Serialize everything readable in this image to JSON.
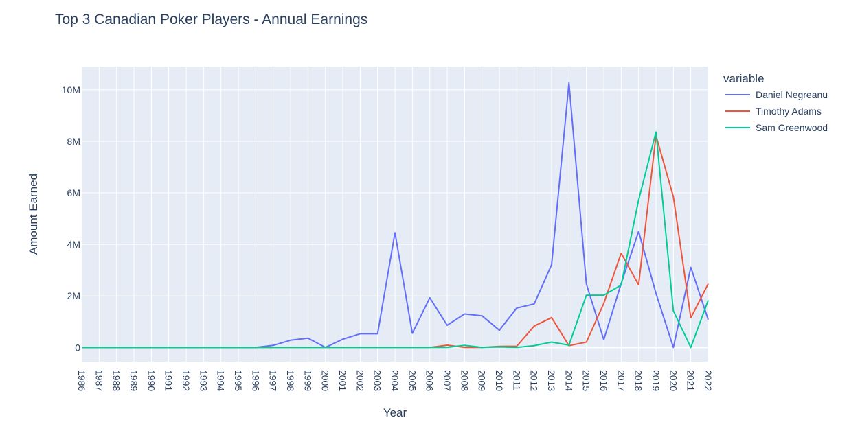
{
  "chart_data": {
    "type": "line",
    "title": "Top 3 Canadian Poker Players - Annual Earnings",
    "xlabel": "Year",
    "ylabel": "Amount Earned",
    "legend_title": "variable",
    "legend_position": "right",
    "grid": true,
    "xlim": [
      1986,
      2022
    ],
    "ylim": [
      -550000,
      10900000
    ],
    "y_ticks": [
      0,
      2000000,
      4000000,
      6000000,
      8000000,
      10000000
    ],
    "y_tick_labels": [
      "0",
      "2M",
      "4M",
      "6M",
      "8M",
      "10M"
    ],
    "x": [
      1986,
      1987,
      1988,
      1989,
      1990,
      1991,
      1992,
      1993,
      1994,
      1995,
      1996,
      1997,
      1998,
      1999,
      2000,
      2001,
      2002,
      2003,
      2004,
      2005,
      2006,
      2007,
      2008,
      2009,
      2010,
      2011,
      2012,
      2013,
      2014,
      2015,
      2016,
      2017,
      2018,
      2019,
      2020,
      2021,
      2022
    ],
    "x_tick_labels": [
      "1986",
      "1987",
      "1988",
      "1989",
      "1990",
      "1991",
      "1992",
      "1993",
      "1994",
      "1995",
      "1996",
      "1997",
      "1998",
      "1999",
      "2000",
      "2001",
      "2002",
      "2003",
      "2004",
      "2005",
      "2006",
      "2007",
      "2008",
      "2009",
      "2010",
      "2011",
      "2012",
      "2013",
      "2014",
      "2015",
      "2016",
      "2017",
      "2018",
      "2019",
      "2020",
      "2021",
      "2022"
    ],
    "series": [
      {
        "name": "Daniel Negreanu",
        "color": "#636efa",
        "values": [
          0,
          0,
          0,
          0,
          0,
          0,
          0,
          0,
          0,
          0,
          0,
          80000,
          280000,
          360000,
          0,
          320000,
          530000,
          530000,
          4450000,
          550000,
          1930000,
          860000,
          1300000,
          1230000,
          670000,
          1530000,
          1690000,
          3210000,
          10270000,
          2460000,
          300000,
          2480000,
          4500000,
          2100000,
          0,
          3110000,
          1080000
        ]
      },
      {
        "name": "Timothy Adams",
        "color": "#ef553b",
        "values": [
          0,
          0,
          0,
          0,
          0,
          0,
          0,
          0,
          0,
          0,
          0,
          0,
          0,
          0,
          0,
          0,
          0,
          0,
          0,
          0,
          0,
          90000,
          0,
          0,
          40000,
          50000,
          830000,
          1160000,
          70000,
          210000,
          1710000,
          3660000,
          2430000,
          8220000,
          5850000,
          1150000,
          2470000
        ]
      },
      {
        "name": "Sam Greenwood",
        "color": "#00cc96",
        "values": [
          0,
          0,
          0,
          0,
          0,
          0,
          0,
          0,
          0,
          0,
          0,
          0,
          0,
          0,
          0,
          0,
          0,
          0,
          0,
          0,
          0,
          0,
          80000,
          0,
          20000,
          0,
          70000,
          210000,
          90000,
          2030000,
          2030000,
          2420000,
          5720000,
          8360000,
          1420000,
          0,
          1830000
        ]
      }
    ]
  }
}
